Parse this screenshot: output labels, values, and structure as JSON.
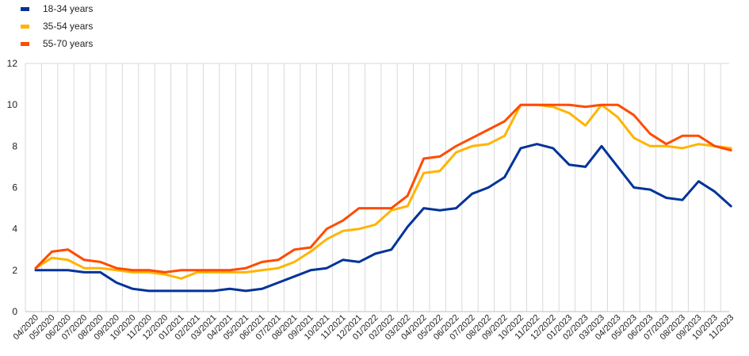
{
  "chart_data": {
    "type": "line",
    "title": "",
    "xlabel": "",
    "ylabel": "",
    "ylim": [
      0,
      12
    ],
    "yticks": [
      0,
      2,
      4,
      6,
      8,
      10,
      12
    ],
    "grid": "vertical",
    "legend_position": "top-left",
    "categories": [
      "04/2020",
      "05/2020",
      "06/2020",
      "07/2020",
      "08/2020",
      "09/2020",
      "10/2020",
      "11/2020",
      "12/2020",
      "01/2021",
      "02/2021",
      "03/2021",
      "04/2021",
      "05/2021",
      "06/2021",
      "07/2021",
      "08/2021",
      "09/2021",
      "10/2021",
      "11/2021",
      "12/2021",
      "01/2022",
      "02/2022",
      "03/2022",
      "04/2022",
      "05/2022",
      "06/2022",
      "07/2022",
      "08/2022",
      "09/2022",
      "10/2022",
      "11/2022",
      "12/2022",
      "01/2023",
      "02/2023",
      "03/2023",
      "04/2023",
      "05/2023",
      "06/2023",
      "07/2023",
      "08/2023",
      "09/2023",
      "10/2023",
      "11/2023"
    ],
    "series": [
      {
        "name": "18-34 years",
        "color": "#003399",
        "values": [
          2.0,
          2.0,
          2.0,
          1.9,
          1.9,
          1.4,
          1.1,
          1.0,
          1.0,
          1.0,
          1.0,
          1.0,
          1.1,
          1.0,
          1.1,
          1.4,
          1.7,
          2.0,
          2.1,
          2.5,
          2.4,
          2.8,
          3.0,
          4.1,
          5.0,
          4.9,
          5.0,
          5.7,
          6.0,
          6.5,
          7.9,
          8.1,
          7.9,
          7.1,
          7.0,
          8.0,
          7.0,
          6.0,
          5.9,
          5.5,
          5.4,
          6.3,
          5.8,
          5.1
        ]
      },
      {
        "name": "35-54 years",
        "color": "#FFB400",
        "values": [
          2.1,
          2.6,
          2.5,
          2.1,
          2.1,
          2.0,
          1.9,
          1.9,
          1.8,
          1.6,
          1.9,
          1.9,
          1.9,
          1.9,
          2.0,
          2.1,
          2.4,
          2.9,
          3.5,
          3.9,
          4.0,
          4.2,
          4.9,
          5.1,
          6.7,
          6.8,
          7.7,
          8.0,
          8.1,
          8.5,
          10.0,
          10.0,
          9.9,
          9.6,
          9.0,
          10.0,
          9.4,
          8.4,
          8.0,
          8.0,
          7.9,
          8.1,
          8.0,
          7.9
        ]
      },
      {
        "name": "55-70 years",
        "color": "#FF4B00",
        "values": [
          2.1,
          2.9,
          3.0,
          2.5,
          2.4,
          2.1,
          2.0,
          2.0,
          1.9,
          2.0,
          2.0,
          2.0,
          2.0,
          2.1,
          2.4,
          2.5,
          3.0,
          3.1,
          4.0,
          4.4,
          5.0,
          5.0,
          5.0,
          5.6,
          7.4,
          7.5,
          8.0,
          8.4,
          8.8,
          9.2,
          10.0,
          10.0,
          10.0,
          10.0,
          9.9,
          10.0,
          10.0,
          9.5,
          8.6,
          8.1,
          8.5,
          8.5,
          8.0,
          7.8
        ]
      }
    ]
  }
}
